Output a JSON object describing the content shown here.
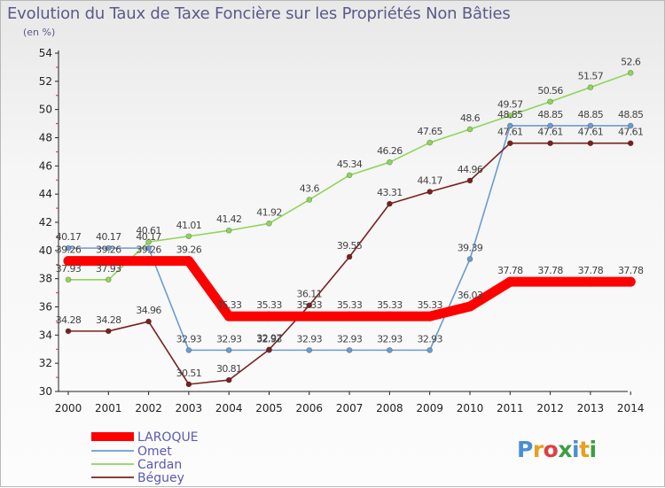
{
  "chart_data": {
    "type": "line",
    "title": "Evolution du Taux de Taxe Foncière sur les Propriétés Non Bâties",
    "unit_label": "(en %)",
    "x": [
      "2000",
      "2001",
      "2002",
      "2003",
      "2004",
      "2005",
      "2006",
      "2007",
      "2008",
      "2009",
      "2010",
      "2011",
      "2012",
      "2013",
      "2014"
    ],
    "ylim": [
      30,
      54
    ],
    "yticks": [
      30,
      32,
      34,
      36,
      38,
      40,
      42,
      44,
      46,
      48,
      50,
      52,
      54
    ],
    "grid": false,
    "legend_position": "bottom-left",
    "series": [
      {
        "name": "LAROQUE",
        "color": "#ff0000",
        "values": [
          39.26,
          39.26,
          39.26,
          39.26,
          35.33,
          35.33,
          35.33,
          35.33,
          35.33,
          35.33,
          36.03,
          37.78,
          37.78,
          37.78,
          37.78
        ],
        "labels": [
          "39.26",
          "39.26",
          "39.26",
          "39.26",
          "35.33",
          "35.33",
          "35.33",
          "35.33",
          "35.33",
          "35.33",
          "36.03",
          "37.78",
          "37.78",
          "37.78",
          "37.78"
        ]
      },
      {
        "name": "Omet",
        "color": "#6a9ccf",
        "values": [
          40.17,
          40.17,
          40.17,
          32.93,
          32.93,
          32.93,
          32.93,
          32.93,
          32.93,
          32.93,
          39.39,
          48.85,
          48.85,
          48.85,
          48.85
        ],
        "labels": [
          "40.17",
          "40.17",
          "40.17",
          "32.93",
          "32.93",
          "32.93",
          "32.93",
          "32.93",
          "32.93",
          "32.93",
          "39.39",
          "48.85",
          "48.85",
          "48.85",
          "48.85"
        ]
      },
      {
        "name": "Cardan",
        "color": "#8fd45a",
        "values": [
          37.93,
          37.93,
          40.61,
          41.01,
          41.42,
          41.92,
          43.6,
          45.34,
          46.26,
          47.65,
          48.6,
          49.57,
          50.56,
          51.57,
          52.6
        ],
        "labels": [
          "37.93",
          "37.93",
          "40.61",
          "41.01",
          "41.42",
          "41.92",
          "43.6",
          "45.34",
          "46.26",
          "47.65",
          "48.6",
          "49.57",
          "50.56",
          "51.57",
          "52.6"
        ]
      },
      {
        "name": "Béguey",
        "color": "#7a2020",
        "values": [
          34.28,
          34.28,
          34.96,
          30.51,
          30.81,
          32.97,
          36.11,
          39.55,
          43.31,
          44.17,
          44.96,
          47.61,
          47.61,
          47.61,
          47.61
        ],
        "labels": [
          "34.28",
          "34.28",
          "34.96",
          "30.51",
          "30.81",
          "32.97",
          "36.11",
          "39.55",
          "43.31",
          "44.17",
          "44.96",
          "47.61",
          "47.61",
          "47.61",
          "47.61"
        ]
      }
    ]
  },
  "logo": {
    "text": "Proxiti",
    "colors": [
      "#4a8ed8",
      "#e8a020",
      "#e04040",
      "#3aa040",
      "#4a8ed8",
      "#e8a020",
      "#3aa040"
    ]
  }
}
